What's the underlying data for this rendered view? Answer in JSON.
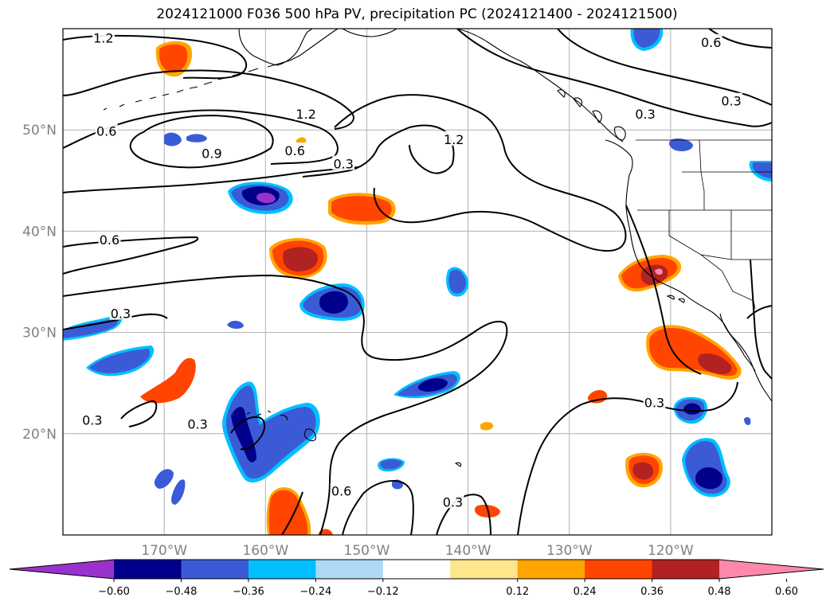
{
  "title": "2024121000 F036 500 hPa PV, precipitation PC (2024121400 - 2024121500)",
  "map": {
    "projection": "plate-carree",
    "lon_range": [
      -180,
      -110
    ],
    "lat_range": [
      10,
      60
    ],
    "gridlines": true,
    "lon_ticks": [
      {
        "lon": -170,
        "label": "170°W"
      },
      {
        "lon": -160,
        "label": "160°W"
      },
      {
        "lon": -150,
        "label": "150°W"
      },
      {
        "lon": -140,
        "label": "140°W"
      },
      {
        "lon": -130,
        "label": "130°W"
      },
      {
        "lon": -120,
        "label": "120°W"
      }
    ],
    "lat_ticks": [
      {
        "lat": 50,
        "label": "50°N"
      },
      {
        "lat": 40,
        "label": "40°N"
      },
      {
        "lat": 30,
        "label": "30°N"
      },
      {
        "lat": 20,
        "label": "20°N"
      }
    ],
    "contour_labels": [
      {
        "text": "1.2",
        "lon": -176,
        "lat": 59
      },
      {
        "text": "0.6",
        "lon": -116,
        "lat": 58.6
      },
      {
        "text": "0.3",
        "lon": -114,
        "lat": 52.8
      },
      {
        "text": "1.2",
        "lon": -156.0,
        "lat": 51.5
      },
      {
        "text": "0.3",
        "lon": -122.5,
        "lat": 51.5
      },
      {
        "text": "0.6",
        "lon": -175.7,
        "lat": 49.8
      },
      {
        "text": "1.2",
        "lon": -141.4,
        "lat": 49
      },
      {
        "text": "0.9",
        "lon": -165.3,
        "lat": 47.6
      },
      {
        "text": "0.6",
        "lon": -157.1,
        "lat": 47.9
      },
      {
        "text": "0.3",
        "lon": -152.3,
        "lat": 46.6
      },
      {
        "text": "0.6",
        "lon": -175.4,
        "lat": 39.1
      },
      {
        "text": "0.3",
        "lon": -174.3,
        "lat": 31.8
      },
      {
        "text": "0.3",
        "lon": -177.1,
        "lat": 21.3
      },
      {
        "text": "0.3",
        "lon": -166.7,
        "lat": 20.9
      },
      {
        "text": "0.3",
        "lon": -121.6,
        "lat": 23
      },
      {
        "text": "0.6",
        "lon": -152.5,
        "lat": 14.3
      },
      {
        "text": "0.3",
        "lon": -141.5,
        "lat": 13.2
      }
    ]
  },
  "colorbar": {
    "colors": [
      "#9932cc",
      "#00008b",
      "#3b5bd6",
      "#00bfff",
      "#add8f6",
      "#ffffff",
      "#fde68c",
      "#ffa500",
      "#ff4500",
      "#b22222",
      "#ff88aa"
    ],
    "labels": [
      "−0.60",
      "−0.48",
      "−0.36",
      "−0.24",
      "−0.12",
      "0.12",
      "0.24",
      "0.36",
      "0.48",
      "0.60"
    ]
  }
}
